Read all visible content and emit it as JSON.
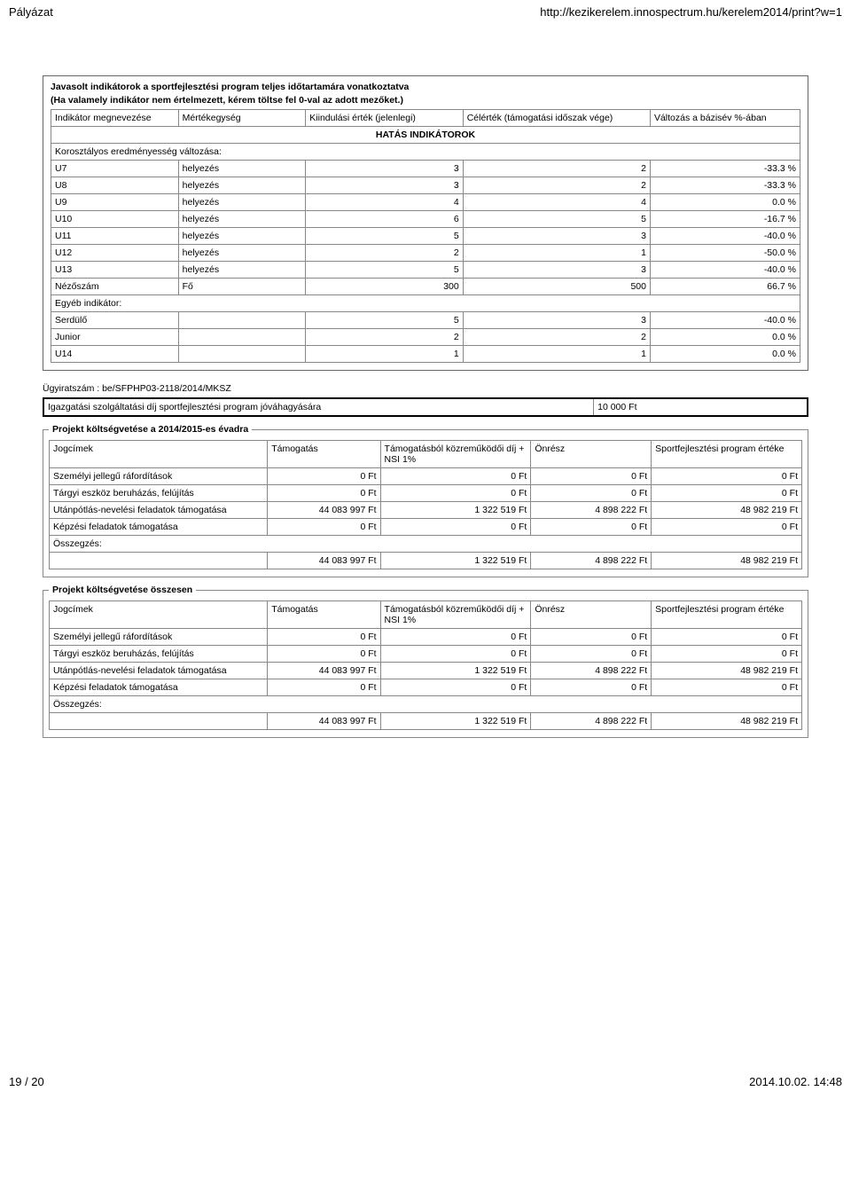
{
  "header": {
    "left": "Pályázat",
    "right": "http://kezikerelem.innospectrum.hu/kerelem2014/print?w=1"
  },
  "box1": {
    "title": "Javasolt indikátorok a sportfejlesztési program teljes időtartamára vonatkoztatva",
    "sub": "(Ha valamely indikátor nem értelmezett, kérem töltse fel 0-val az adott mezőket.)",
    "headers": {
      "c1": "Indikátor megnevezése",
      "c2": "Mértékegység",
      "c3": "Kiindulási érték (jelenlegi)",
      "c4": "Célérték (támogatási időszak vége)",
      "c5": "Változás a bázisév %-ában"
    },
    "section": "HATÁS INDIKÁTOROK",
    "group1": "Korosztályos eredményesség változása:",
    "rows": [
      {
        "a": "U7",
        "b": "helyezés",
        "c": "3",
        "d": "2",
        "e": "-33.3  %"
      },
      {
        "a": "U8",
        "b": "helyezés",
        "c": "3",
        "d": "2",
        "e": "-33.3  %"
      },
      {
        "a": "U9",
        "b": "helyezés",
        "c": "4",
        "d": "4",
        "e": "0.0  %"
      },
      {
        "a": "U10",
        "b": "helyezés",
        "c": "6",
        "d": "5",
        "e": "-16.7  %"
      },
      {
        "a": "U11",
        "b": "helyezés",
        "c": "5",
        "d": "3",
        "e": "-40.0  %"
      },
      {
        "a": "U12",
        "b": "helyezés",
        "c": "2",
        "d": "1",
        "e": "-50.0  %"
      },
      {
        "a": "U13",
        "b": "helyezés",
        "c": "5",
        "d": "3",
        "e": "-40.0  %"
      },
      {
        "a": "Nézőszám",
        "b": "Fő",
        "c": "300",
        "d": "500",
        "e": "66.7  %"
      }
    ],
    "group2": "Egyéb indikátor:",
    "rows2": [
      {
        "a": "Serdülő",
        "b": "",
        "c": "5",
        "d": "3",
        "e": "-40.0  %"
      },
      {
        "a": "Junior",
        "b": "",
        "c": "2",
        "d": "2",
        "e": "0.0  %"
      },
      {
        "a": "U14",
        "b": "",
        "c": "1",
        "d": "1",
        "e": "0.0  %"
      }
    ]
  },
  "caseno": "Ügyiratszám : be/SFPHP03-2118/2014/MKSZ",
  "fee": {
    "label": "Igazgatási szolgáltatási díj sportfejlesztési program jóváhagyására",
    "value": "10 000 Ft"
  },
  "budget": {
    "legend1": "Projekt költségvetése a 2014/2015-es évadra",
    "legend2": "Projekt költségvetése összesen",
    "headers": {
      "c1": "Jogcímek",
      "c2": "Támogatás",
      "c3": "Támogatásból közreműködői díj + NSI 1%",
      "c4": "Önrész",
      "c5": "Sportfejlesztési program értéke"
    },
    "rows": [
      {
        "a": "Személyi jellegű ráfordítások",
        "b": "0 Ft",
        "c": "0 Ft",
        "d": "0 Ft",
        "e": "0 Ft"
      },
      {
        "a": "Tárgyi eszköz beruházás, felújítás",
        "b": "0 Ft",
        "c": "0 Ft",
        "d": "0 Ft",
        "e": "0 Ft"
      },
      {
        "a": "Utánpótlás-nevelési feladatok támogatása",
        "b": "44 083 997 Ft",
        "c": "1 322 519 Ft",
        "d": "4 898 222 Ft",
        "e": "48 982 219 Ft"
      },
      {
        "a": "Képzési feladatok támogatása",
        "b": "0 Ft",
        "c": "0 Ft",
        "d": "0 Ft",
        "e": "0 Ft"
      }
    ],
    "sumlabel": "Összegzés:",
    "totals": {
      "b": "44 083 997 Ft",
      "c": "1 322 519 Ft",
      "d": "4 898 222 Ft",
      "e": "48 982 219 Ft"
    }
  },
  "footer": {
    "left": "19 / 20",
    "right": "2014.10.02. 14:48"
  }
}
